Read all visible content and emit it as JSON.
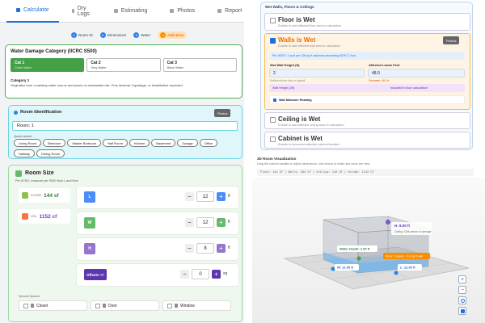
{
  "tabs": [
    "Calculator",
    "Dry Logs",
    "Estimating",
    "Photos",
    "Report"
  ],
  "steps": [
    {
      "number": "1",
      "label": "Room ID"
    },
    {
      "number": "2",
      "label": "Dimensions"
    },
    {
      "number": "3",
      "label": "Water"
    },
    {
      "number": "4",
      "label": "Add Items"
    }
  ],
  "category": {
    "title": "Water Damage Category (IICRC S500)",
    "options": [
      {
        "name": "Cat 1",
        "desc": "Clean Water"
      },
      {
        "name": "Cat 2",
        "desc": "Grey Water"
      },
      {
        "name": "Cat 3",
        "desc": "Black Water"
      }
    ],
    "selected_title": "Category 1",
    "selected_desc": "Originates from a sanitary water source and poses no substantial risk. Free decimal, if garbage, or inhabitation expected."
  },
  "room_id": {
    "title": "Room Identification",
    "photos_button": "Photos",
    "room_name": "Room: 1",
    "quick_select_label": "Quick select:",
    "chips": [
      "Living Room",
      "Bedroom",
      "Master Bedroom",
      "Half Room",
      "Kitchen",
      "Basement",
      "Garage",
      "Office",
      "Hallway",
      "Dining Room"
    ]
  },
  "room_size": {
    "title": "Room Size",
    "note": "Per IICRC: measure per S500 floor L and floor",
    "floor": {
      "label": "FLOOR",
      "value": "144 sf"
    },
    "volume": {
      "label": "VOL",
      "value": "1152 cf"
    },
    "minus": "−",
    "plus": "+",
    "dimensions": [
      {
        "key": "L",
        "value": "12",
        "unit": "ft"
      },
      {
        "key": "W",
        "value": "12",
        "unit": "ft"
      },
      {
        "key": "H",
        "value": "8",
        "unit": "ft"
      },
      {
        "key": "Offsets +/-",
        "value": "0",
        "unit": "sq"
      }
    ],
    "special_label": "Special Spaces",
    "specials": [
      "Closet",
      "Door",
      "Window"
    ]
  },
  "wet": {
    "header": "Wet Walls, Floors & Ceilings",
    "floor": {
      "title": "Floor is Wet",
      "desc": "Enable to add affected floor area to calculation"
    },
    "walls": {
      "title": "Walls is Wet",
      "desc": "Enable to add affected wall area to calculation",
      "photos_button": "Photos",
      "note": "Per IICRC: 1 sq ft per 100 sq ft wall area exceeding IICRC 1 foot",
      "height_label": "Wet Wall Height (ft)",
      "height_value": "2",
      "linear_label": "Affected Linear Feet",
      "linear_value": "48.0",
      "height_hint": "Sufficient from floor to drywall",
      "linear_hint": "Perimeter: 48.0 ft",
      "wall_height_label": "Wall Height (2ft)",
      "wall_height_note": "Included in floor calculation",
      "moisture_label": "Wall Moisture Reading"
    },
    "ceiling": {
      "title": "Ceiling is Wet",
      "desc": "Enable to add affected ceiling area to calculation"
    },
    "cabinet": {
      "title": "Cabinet is Wet",
      "desc": "Enable to document affected cabinet/vanities"
    }
  },
  "viz": {
    "title": "3D Room Visualization",
    "desc": "Drag the colored handles to adjust dimensions. Use mouse to rotate and zoom the view.",
    "stats": "Floor: 144 SF | Walls: 384 SF | Ceiling: 144 SF | Volume: 1152 CF",
    "height_label": "H: 8.00 ft",
    "ceiling_hint": "Ceiling: Click above to damage",
    "water_label": "Water Depth: 2.00 ft",
    "floor_label": "Floor: Carpet - 0.0 sq ft wet",
    "w_label": "W: 12.00 ft",
    "l_label": "L: 12.00 ft",
    "zoom_in": "+",
    "zoom_out": "−"
  }
}
